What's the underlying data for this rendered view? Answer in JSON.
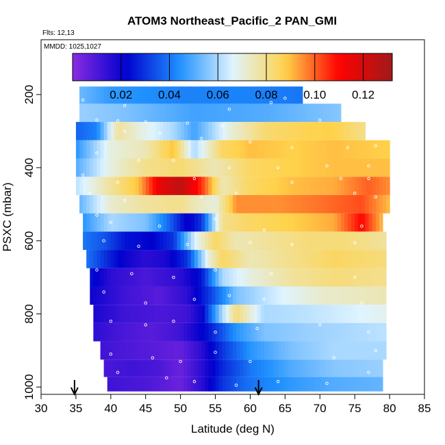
{
  "chart_data": {
    "type": "heatmap",
    "title": "ATOM3 Northeast_Pacific_2 PAN_GMI",
    "flights_label": "Flts: 12,13",
    "dates_label": "MMDD: 1025,1027",
    "xlabel": "Latitude (deg N)",
    "ylabel": "PSXC (mbar)",
    "xlim": [
      30,
      85
    ],
    "ylim": [
      1020,
      50
    ],
    "x_ticks": [
      "30",
      "35",
      "40",
      "45",
      "50",
      "55",
      "60",
      "65",
      "70",
      "75",
      "80",
      "85"
    ],
    "y_ticks": [
      "200",
      "400",
      "600",
      "800",
      "1000"
    ],
    "colorbar": {
      "range": [
        0.0,
        0.132
      ],
      "tick_labels": [
        "0.02",
        "0.04",
        "0.06",
        "0.08",
        "0.10",
        "0.12"
      ],
      "tick_values": [
        0.02,
        0.04,
        0.06,
        0.08,
        0.1,
        0.12
      ],
      "colors": [
        "#8a2be2",
        "#0000cd",
        "#1e90ff",
        "#dff4ff",
        "#ffd24a",
        "#ff0000",
        "#a01a1a"
      ]
    },
    "arrows_latitude": [
      34.8,
      61.2
    ],
    "levels": [
      {
        "p": 200,
        "xmin": 35.5,
        "xmax": 67.5,
        "knots": [
          [
            35.5,
            0.053
          ],
          [
            40,
            0.046
          ],
          [
            50,
            0.042
          ],
          [
            60,
            0.042
          ],
          [
            67.5,
            0.04
          ]
        ]
      },
      {
        "p": 250,
        "xmin": 35.5,
        "xmax": 73.0,
        "knots": [
          [
            35.5,
            0.058
          ],
          [
            42,
            0.055
          ],
          [
            52,
            0.048
          ],
          [
            62,
            0.05
          ],
          [
            73,
            0.056
          ]
        ]
      },
      {
        "p": 300,
        "xmin": 35.0,
        "xmax": 76.5,
        "knots": [
          [
            35,
            0.037
          ],
          [
            38,
            0.042
          ],
          [
            41,
            0.078
          ],
          [
            45,
            0.068
          ],
          [
            49,
            0.06
          ],
          [
            52,
            0.048
          ],
          [
            57,
            0.07
          ],
          [
            62,
            0.083
          ],
          [
            68,
            0.087
          ],
          [
            72,
            0.088
          ],
          [
            76.5,
            0.08
          ]
        ]
      },
      {
        "p": 350,
        "xmin": 35.0,
        "xmax": 80.0,
        "knots": [
          [
            35,
            0.045
          ],
          [
            40,
            0.07
          ],
          [
            45,
            0.075
          ],
          [
            49,
            0.09
          ],
          [
            52,
            0.06
          ],
          [
            56,
            0.085
          ],
          [
            60,
            0.09
          ],
          [
            66,
            0.088
          ],
          [
            72,
            0.09
          ],
          [
            80,
            0.088
          ]
        ]
      },
      {
        "p": 400,
        "xmin": 35.0,
        "xmax": 80.0,
        "knots": [
          [
            35,
            0.05
          ],
          [
            40,
            0.07
          ],
          [
            45,
            0.08
          ],
          [
            50,
            0.083
          ],
          [
            55,
            0.075
          ],
          [
            60,
            0.085
          ],
          [
            66,
            0.088
          ],
          [
            72,
            0.09
          ],
          [
            80,
            0.09
          ]
        ]
      },
      {
        "p": 450,
        "xmin": 35.0,
        "xmax": 80.0,
        "knots": [
          [
            35,
            0.062
          ],
          [
            40,
            0.078
          ],
          [
            44,
            0.09
          ],
          [
            47,
            0.115
          ],
          [
            50,
            0.125
          ],
          [
            53,
            0.105
          ],
          [
            56,
            0.075
          ],
          [
            60,
            0.085
          ],
          [
            66,
            0.09
          ],
          [
            72,
            0.092
          ],
          [
            77,
            0.1
          ],
          [
            80,
            0.095
          ]
        ]
      },
      {
        "p": 500,
        "xmin": 35.5,
        "xmax": 80.0,
        "knots": [
          [
            35.5,
            0.052
          ],
          [
            40,
            0.072
          ],
          [
            45,
            0.078
          ],
          [
            50,
            0.08
          ],
          [
            52,
            0.075
          ],
          [
            55,
            0.07
          ],
          [
            58,
            0.095
          ],
          [
            64,
            0.095
          ],
          [
            70,
            0.098
          ],
          [
            76,
            0.102
          ],
          [
            80,
            0.09
          ]
        ]
      },
      {
        "p": 550,
        "xmin": 36.0,
        "xmax": 79.0,
        "knots": [
          [
            36,
            0.045
          ],
          [
            40,
            0.06
          ],
          [
            45,
            0.055
          ],
          [
            48,
            0.04
          ],
          [
            51,
            0.02
          ],
          [
            53,
            0.03
          ],
          [
            56,
            0.08
          ],
          [
            60,
            0.085
          ],
          [
            66,
            0.088
          ],
          [
            72,
            0.092
          ],
          [
            76,
            0.11
          ],
          [
            79,
            0.09
          ]
        ]
      },
      {
        "p": 600,
        "xmin": 36.0,
        "xmax": 79.5,
        "knots": [
          [
            36,
            0.04
          ],
          [
            39,
            0.035
          ],
          [
            42,
            0.025
          ],
          [
            46,
            0.022
          ],
          [
            49,
            0.03
          ],
          [
            52,
            0.065
          ],
          [
            55,
            0.085
          ],
          [
            58,
            0.075
          ],
          [
            62,
            0.078
          ],
          [
            68,
            0.082
          ],
          [
            74,
            0.082
          ],
          [
            79.5,
            0.078
          ]
        ]
      },
      {
        "p": 650,
        "xmin": 36.5,
        "xmax": 79.5,
        "knots": [
          [
            36.5,
            0.04
          ],
          [
            39,
            0.03
          ],
          [
            42,
            0.02
          ],
          [
            45,
            0.015
          ],
          [
            48,
            0.018
          ],
          [
            51,
            0.03
          ],
          [
            54,
            0.07
          ],
          [
            56,
            0.085
          ],
          [
            60,
            0.075
          ],
          [
            66,
            0.08
          ],
          [
            72,
            0.085
          ],
          [
            79.5,
            0.082
          ]
        ]
      },
      {
        "p": 700,
        "xmin": 37.0,
        "xmax": 79.5,
        "knots": [
          [
            37,
            0.025
          ],
          [
            40,
            0.015
          ],
          [
            45,
            0.01
          ],
          [
            50,
            0.015
          ],
          [
            53,
            0.025
          ],
          [
            56,
            0.06
          ],
          [
            60,
            0.07
          ],
          [
            66,
            0.078
          ],
          [
            72,
            0.082
          ],
          [
            79.5,
            0.08
          ]
        ]
      },
      {
        "p": 750,
        "xmin": 37.0,
        "xmax": 79.5,
        "knots": [
          [
            37,
            0.02
          ],
          [
            42,
            0.012
          ],
          [
            47,
            0.008
          ],
          [
            51,
            0.015
          ],
          [
            54,
            0.03
          ],
          [
            58,
            0.055
          ],
          [
            64,
            0.065
          ],
          [
            70,
            0.072
          ],
          [
            79.5,
            0.075
          ]
        ]
      },
      {
        "p": 800,
        "xmin": 37.5,
        "xmax": 79.5,
        "knots": [
          [
            37.5,
            0.018
          ],
          [
            42,
            0.012
          ],
          [
            47,
            0.01
          ],
          [
            51,
            0.012
          ],
          [
            53,
            0.02
          ],
          [
            56,
            0.06
          ],
          [
            58,
            0.082
          ],
          [
            62,
            0.06
          ],
          [
            68,
            0.062
          ],
          [
            74,
            0.065
          ],
          [
            79.5,
            0.068
          ]
        ]
      },
      {
        "p": 850,
        "xmin": 37.5,
        "xmax": 79.5,
        "knots": [
          [
            37.5,
            0.015
          ],
          [
            42,
            0.01
          ],
          [
            46,
            0.008
          ],
          [
            50,
            0.012
          ],
          [
            54,
            0.025
          ],
          [
            58,
            0.045
          ],
          [
            62,
            0.055
          ],
          [
            68,
            0.058
          ],
          [
            74,
            0.06
          ],
          [
            79.5,
            0.062
          ]
        ]
      },
      {
        "p": 900,
        "xmin": 38.5,
        "xmax": 79.5,
        "knots": [
          [
            38.5,
            0.012
          ],
          [
            42,
            0.01
          ],
          [
            46,
            0.008
          ],
          [
            50,
            0.006
          ],
          [
            53,
            0.015
          ],
          [
            56,
            0.03
          ],
          [
            60,
            0.045
          ],
          [
            66,
            0.055
          ],
          [
            72,
            0.06
          ],
          [
            79.5,
            0.06
          ]
        ]
      },
      {
        "p": 950,
        "xmin": 39.0,
        "xmax": 79.0,
        "knots": [
          [
            39,
            0.01
          ],
          [
            43,
            0.012
          ],
          [
            47,
            0.01
          ],
          [
            50,
            0.005
          ],
          [
            53,
            0.015
          ],
          [
            56,
            0.028
          ],
          [
            60,
            0.04
          ],
          [
            66,
            0.05
          ],
          [
            72,
            0.056
          ],
          [
            79,
            0.058
          ]
        ]
      },
      {
        "p": 995,
        "xmin": 39.5,
        "xmax": 79.0,
        "knots": [
          [
            39.5,
            0.012
          ],
          [
            45,
            0.01
          ],
          [
            50,
            0.005
          ],
          [
            53,
            0.015
          ],
          [
            56,
            0.03
          ],
          [
            59,
            0.038
          ],
          [
            62,
            0.042
          ],
          [
            66,
            0.046
          ],
          [
            72,
            0.05
          ],
          [
            79,
            0.052
          ]
        ]
      }
    ],
    "points": [
      [
        36,
        215
      ],
      [
        42,
        230
      ],
      [
        57,
        240
      ],
      [
        63,
        222
      ],
      [
        65,
        210
      ],
      [
        38,
        270
      ],
      [
        41,
        272
      ],
      [
        45,
        275
      ],
      [
        51,
        278
      ],
      [
        56,
        285
      ],
      [
        70,
        270
      ],
      [
        76,
        265
      ],
      [
        42,
        300
      ],
      [
        47,
        305
      ],
      [
        53,
        320
      ],
      [
        60,
        330
      ],
      [
        66,
        345
      ],
      [
        74,
        345
      ],
      [
        78,
        340
      ],
      [
        38,
        360
      ],
      [
        44,
        380
      ],
      [
        49,
        380
      ],
      [
        57,
        400
      ],
      [
        64,
        400
      ],
      [
        71,
        395
      ],
      [
        77,
        395
      ],
      [
        36,
        420
      ],
      [
        41,
        440
      ],
      [
        52,
        430
      ],
      [
        66,
        440
      ],
      [
        73,
        430
      ],
      [
        77,
        430
      ],
      [
        37,
        470
      ],
      [
        42,
        490
      ],
      [
        53,
        480
      ],
      [
        58,
        470
      ],
      [
        75,
        470
      ],
      [
        78,
        480
      ],
      [
        38,
        530
      ],
      [
        40,
        550
      ],
      [
        47,
        560
      ],
      [
        55,
        540
      ],
      [
        62,
        570
      ],
      [
        76,
        560
      ],
      [
        39,
        600
      ],
      [
        44,
        615
      ],
      [
        51,
        610
      ],
      [
        60,
        605
      ],
      [
        66,
        610
      ],
      [
        75,
        605
      ],
      [
        38,
        680
      ],
      [
        43,
        690
      ],
      [
        49,
        700
      ],
      [
        55,
        680
      ],
      [
        63,
        690
      ],
      [
        75,
        700
      ],
      [
        39,
        740
      ],
      [
        45,
        770
      ],
      [
        52,
        760
      ],
      [
        57,
        750
      ],
      [
        62,
        760
      ],
      [
        76,
        770
      ],
      [
        40,
        820
      ],
      [
        45,
        830
      ],
      [
        49,
        820
      ],
      [
        55,
        850
      ],
      [
        61,
        840
      ],
      [
        70,
        830
      ],
      [
        77,
        850
      ],
      [
        40,
        910
      ],
      [
        46,
        920
      ],
      [
        50,
        930
      ],
      [
        55,
        905
      ],
      [
        60,
        930
      ],
      [
        72,
        920
      ],
      [
        78,
        900
      ],
      [
        41,
        960
      ],
      [
        48,
        975
      ],
      [
        52,
        985
      ],
      [
        58,
        995
      ],
      [
        64,
        985
      ],
      [
        71,
        990
      ],
      [
        77,
        960
      ]
    ]
  }
}
